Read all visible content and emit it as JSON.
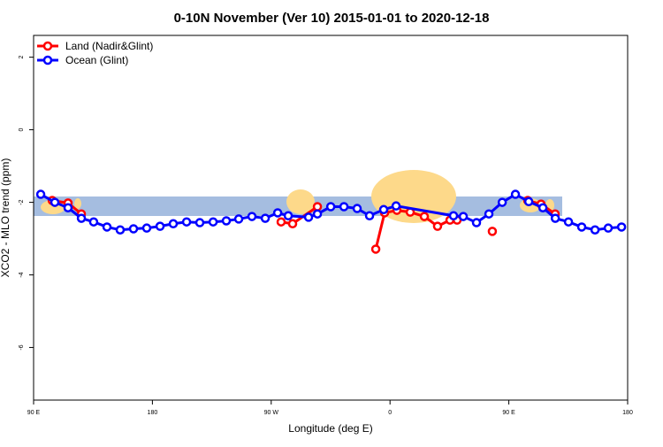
{
  "chart_data": {
    "type": "line",
    "title": "0-10N November (Ver 10)   2015-01-01 to 2020-12-18",
    "x_label": "Longitude (deg E)",
    "y_label": "XCO2 - MLO trend (ppm)",
    "xlim": [
      90,
      540
    ],
    "ylim": [
      -7.45,
      2.6
    ],
    "xticks": [
      {
        "value": 90,
        "label": "90 E"
      },
      {
        "value": 180,
        "label": "180"
      },
      {
        "value": 270,
        "label": "90 W"
      },
      {
        "value": 360,
        "label": "0"
      },
      {
        "value": 450,
        "label": "90 E"
      },
      {
        "value": 540,
        "label": "180"
      }
    ],
    "yticks": [
      2,
      0,
      -2,
      -4,
      -6
    ],
    "legend": "top-left",
    "series": [
      {
        "name": "Land (Nadir&Glint)",
        "color": "#ff0000",
        "x": [
          104.1,
          116.1,
          126.2,
          null,
          277.5,
          286.2,
          305,
          null,
          349.2,
          355.9,
          365.2,
          375.3,
          386,
          396,
          405.4,
          410.8,
          null,
          437.5,
          null,
          464.3,
          474.4,
          485.1
        ],
        "values": [
          -1.95,
          -2.02,
          -2.32,
          null,
          -2.54,
          -2.59,
          -2.12,
          null,
          -3.29,
          -2.29,
          -2.22,
          -2.27,
          -2.39,
          -2.66,
          -2.49,
          -2.49,
          null,
          -2.8,
          null,
          -1.95,
          -2.05,
          -2.32
        ]
      },
      {
        "name": "Ocean (Glint)",
        "color": "#0000ff",
        "x": [
          95.4,
          106.1,
          116.1,
          126.2,
          135.5,
          145.6,
          155.6,
          165.7,
          175.7,
          185.8,
          195.8,
          205.9,
          215.9,
          226,
          236,
          245.4,
          255.4,
          265.5,
          274.9,
          282.9,
          298.3,
          305,
          315.1,
          325.1,
          335.1,
          344.5,
          355.2,
          364.6,
          408.1,
          415.5,
          425.5,
          434.9,
          445,
          455,
          465.1,
          475.8,
          485.2,
          495.2,
          505.2,
          515.3,
          525.3,
          535.4
        ],
        "values": [
          -1.78,
          -2.0,
          -2.15,
          -2.44,
          -2.54,
          -2.68,
          -2.76,
          -2.73,
          -2.71,
          -2.66,
          -2.59,
          -2.54,
          -2.56,
          -2.54,
          -2.51,
          -2.46,
          -2.39,
          -2.44,
          -2.29,
          -2.37,
          -2.41,
          -2.32,
          -2.12,
          -2.12,
          -2.17,
          -2.37,
          -2.2,
          -2.1,
          -2.37,
          -2.39,
          -2.56,
          -2.32,
          -2.0,
          -1.78,
          -1.98,
          -2.15,
          -2.44,
          -2.54,
          -2.68,
          -2.76,
          -2.71,
          -2.68
        ]
      }
    ]
  }
}
